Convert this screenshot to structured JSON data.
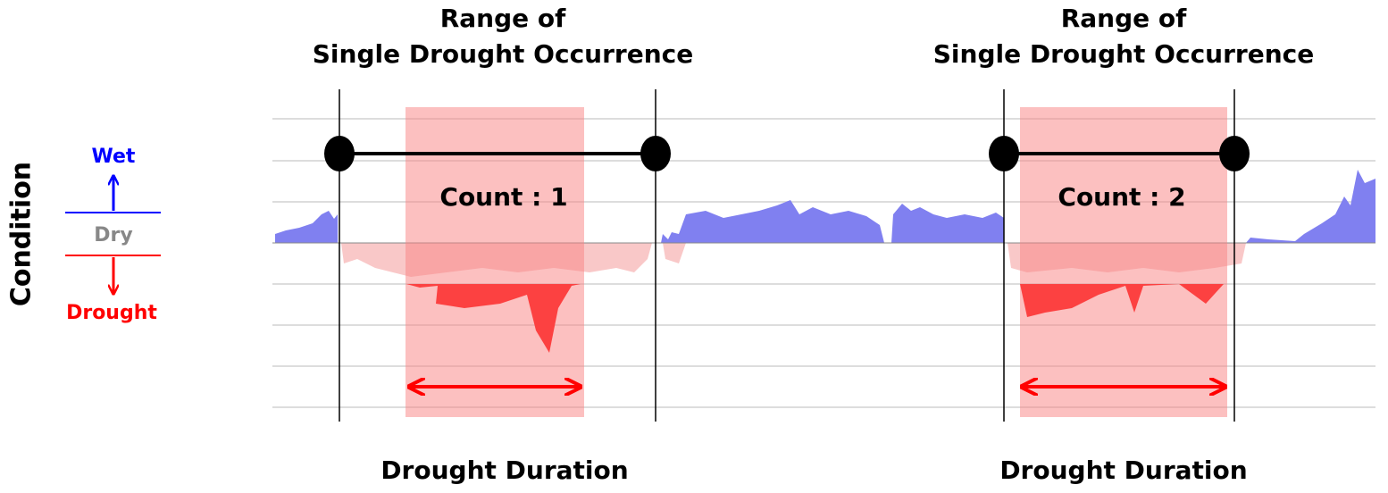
{
  "legend": {
    "axis_label": "Condition",
    "wet": "Wet",
    "dry": "Dry",
    "drought": "Drought"
  },
  "events": [
    {
      "title_line1": "Range of",
      "title_line2": "Single Drought Occurrence",
      "count": "Count : 1",
      "duration": "Drought Duration"
    },
    {
      "title_line1": "Range of",
      "title_line2": "Single Drought Occurrence",
      "count": "Count : 2",
      "duration": "Drought Duration"
    }
  ]
}
